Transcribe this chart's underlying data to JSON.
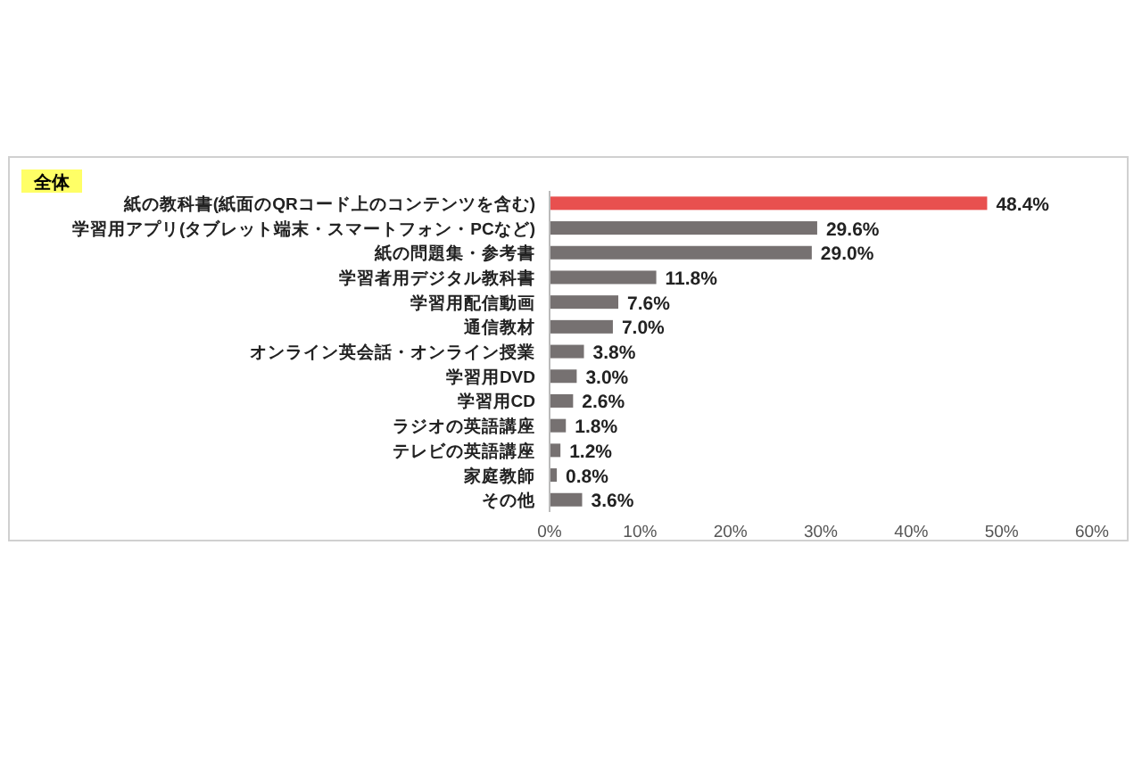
{
  "chart_data": {
    "type": "bar",
    "orientation": "horizontal",
    "title": "全体",
    "categories": [
      "紙の教科書(紙面のQRコード上のコンテンツを含む)",
      "学習用アプリ(タブレット端末・スマートフォン・PCなど)",
      "紙の問題集・参考書",
      "学習者用デジタル教科書",
      "学習用配信動画",
      "通信教材",
      "オンライン英会話・オンライン授業",
      "学習用DVD",
      "学習用CD",
      "ラジオの英語講座",
      "テレビの英語講座",
      "家庭教師",
      "その他"
    ],
    "values": [
      48.4,
      29.6,
      29.0,
      11.8,
      7.6,
      7.0,
      3.8,
      3.0,
      2.6,
      1.8,
      1.2,
      0.8,
      3.6
    ],
    "colors": [
      "#e8504f",
      "#767171",
      "#767171",
      "#767171",
      "#767171",
      "#767171",
      "#767171",
      "#767171",
      "#767171",
      "#767171",
      "#767171",
      "#767171",
      "#767171"
    ],
    "value_labels": [
      "48.4%",
      "29.6%",
      "29.0%",
      "11.8%",
      "7.6%",
      "7.0%",
      "3.8%",
      "3.0%",
      "2.6%",
      "1.8%",
      "1.2%",
      "0.8%",
      "3.6%"
    ],
    "xlim": [
      0,
      60
    ],
    "xticks": [
      {
        "value": 0,
        "label": "0%"
      },
      {
        "value": 10,
        "label": "10%"
      },
      {
        "value": 20,
        "label": "20%"
      },
      {
        "value": 30,
        "label": "30%"
      },
      {
        "value": 40,
        "label": "40%"
      },
      {
        "value": 50,
        "label": "50%"
      },
      {
        "value": 60,
        "label": "60%"
      }
    ]
  }
}
